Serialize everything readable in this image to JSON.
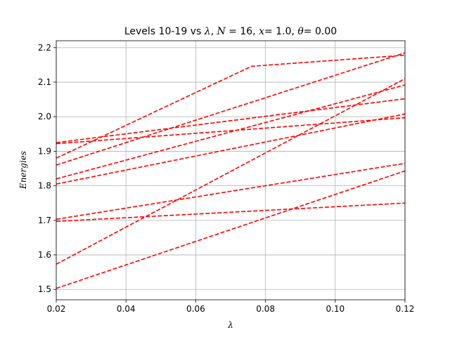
{
  "chart_data": {
    "type": "line",
    "title": "Levels 10-19 vs λ, N = 16,  x= 1.0, θ= 0.00",
    "title_parts": {
      "prefix": "Levels 10-19 vs ",
      "lambda": "λ",
      "sep1": ", ",
      "N": "N",
      "eq": " = 16,  ",
      "x": "x",
      "xval": "= 1.0, ",
      "theta": "θ",
      "thetaval": "= 0.00"
    },
    "xlabel": "λ",
    "ylabel": "Energies",
    "xlim": [
      0.02,
      0.12
    ],
    "ylim": [
      1.47,
      2.22
    ],
    "xticks": [
      0.02,
      0.04,
      0.06,
      0.08,
      0.1,
      0.12
    ],
    "xtick_labels": [
      "0.02",
      "0.04",
      "0.06",
      "0.08",
      "0.10",
      "0.12"
    ],
    "yticks": [
      1.5,
      1.6,
      1.7,
      1.8,
      1.9,
      2.0,
      2.1,
      2.2
    ],
    "ytick_labels": [
      "1.5",
      "1.6",
      "1.7",
      "1.8",
      "1.9",
      "2.0",
      "2.1",
      "2.2"
    ],
    "grid": true,
    "line_color": "#ff0000",
    "line_style": "dashed",
    "series": [
      {
        "x": [
          0.02,
          0.12
        ],
        "y": [
          1.503,
          1.843
        ]
      },
      {
        "x": [
          0.02,
          0.12
        ],
        "y": [
          1.573,
          2.11
        ]
      },
      {
        "x": [
          0.02,
          0.12
        ],
        "y": [
          1.697,
          1.75
        ]
      },
      {
        "x": [
          0.02,
          0.12
        ],
        "y": [
          1.703,
          1.865
        ]
      },
      {
        "x": [
          0.02,
          0.12
        ],
        "y": [
          1.805,
          2.008
        ]
      },
      {
        "x": [
          0.02,
          0.12
        ],
        "y": [
          1.82,
          2.092
        ]
      },
      {
        "x": [
          0.02,
          0.12
        ],
        "y": [
          1.86,
          2.185
        ]
      },
      {
        "x": [
          0.02,
          0.076,
          0.12
        ],
        "y": [
          1.88,
          2.146,
          2.178
        ]
      },
      {
        "x": [
          0.02,
          0.12
        ],
        "y": [
          1.922,
          1.997
        ]
      },
      {
        "x": [
          0.02,
          0.12
        ],
        "y": [
          1.925,
          2.052
        ]
      }
    ]
  }
}
